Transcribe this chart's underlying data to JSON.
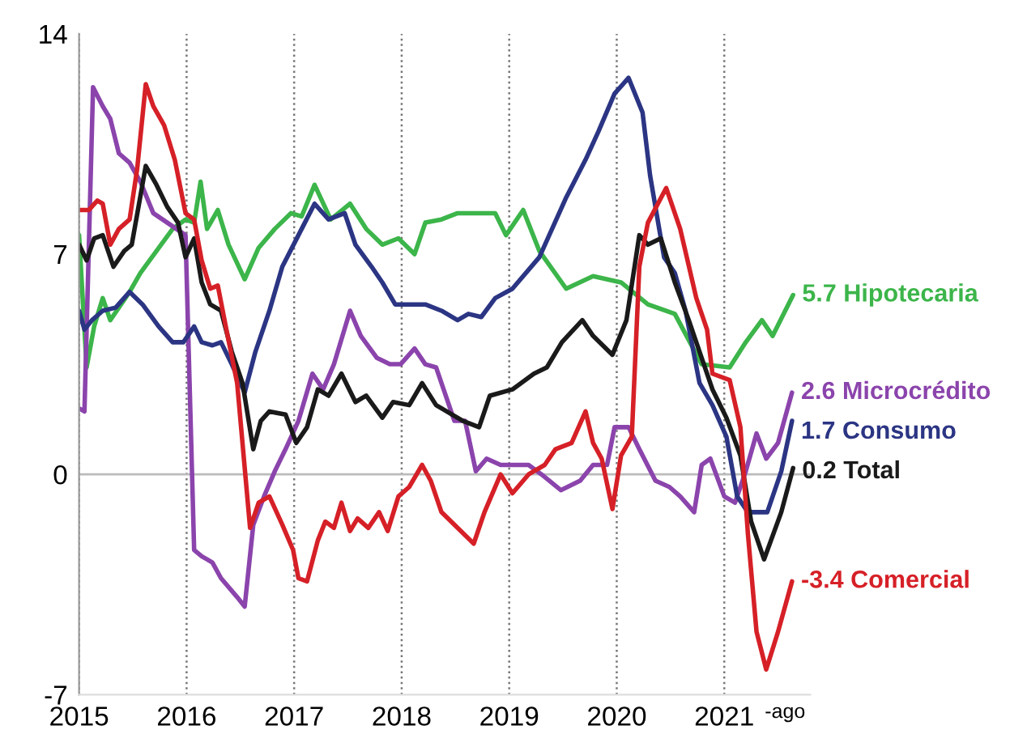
{
  "chart_data": {
    "type": "line",
    "xlim": [
      2015,
      2021.8
    ],
    "xticks": [
      2015,
      2016,
      2017,
      2018,
      2019,
      2020,
      2021
    ],
    "ylim": [
      -7,
      14
    ],
    "yticks": [
      -7,
      0,
      7,
      14
    ],
    "grid": "x",
    "marker": "none",
    "line_style": "solid",
    "ref_lines": [
      {
        "axis": "y",
        "value": 0,
        "color": "#bbbbbb"
      }
    ],
    "annotations": [
      "-ago"
    ],
    "series": [
      {
        "name": "5.7 Hipotecaria",
        "color": "#3cb54a",
        "x": [
          2015.0,
          2015.07,
          2015.14,
          2015.22,
          2015.29,
          2015.39,
          2015.47,
          2015.57,
          2015.72,
          2015.87,
          2015.99,
          2016.07,
          2016.13,
          2016.19,
          2016.29,
          2016.39,
          2016.54,
          2016.67,
          2016.82,
          2016.97,
          2017.07,
          2017.19,
          2017.34,
          2017.52,
          2017.67,
          2017.82,
          2017.97,
          2018.12,
          2018.22,
          2018.37,
          2018.52,
          2018.67,
          2018.87,
          2018.97,
          2019.13,
          2019.28,
          2019.53,
          2019.78,
          2020.04,
          2020.29,
          2020.54,
          2020.79,
          2021.05,
          2021.2,
          2021.35,
          2021.45,
          2021.64
        ],
        "values": [
          7.6,
          3.4,
          4.7,
          5.6,
          4.9,
          5.4,
          5.8,
          6.4,
          7.1,
          7.8,
          8.1,
          8.0,
          9.3,
          7.8,
          8.4,
          7.3,
          6.2,
          7.2,
          7.8,
          8.3,
          8.2,
          9.2,
          8.1,
          8.6,
          7.8,
          7.3,
          7.5,
          7.0,
          8.0,
          8.1,
          8.3,
          8.3,
          8.3,
          7.6,
          8.4,
          7.1,
          5.9,
          6.3,
          6.1,
          5.4,
          5.1,
          3.5,
          3.4,
          4.2,
          4.9,
          4.4,
          5.7
        ]
      },
      {
        "name": "2.6 Microcrédito",
        "color": "#8b44ac",
        "x": [
          2015.0,
          2015.05,
          2015.13,
          2015.22,
          2015.29,
          2015.37,
          2015.47,
          2015.57,
          2015.69,
          2015.82,
          2015.99,
          2016.07,
          2016.14,
          2016.24,
          2016.32,
          2016.47,
          2016.54,
          2016.62,
          2016.72,
          2016.82,
          2016.92,
          2017.04,
          2017.17,
          2017.27,
          2017.37,
          2017.52,
          2017.62,
          2017.77,
          2017.89,
          2017.99,
          2018.12,
          2018.22,
          2018.32,
          2018.39,
          2018.49,
          2018.59,
          2018.69,
          2018.79,
          2018.92,
          2019.03,
          2019.18,
          2019.3,
          2019.48,
          2019.66,
          2019.78,
          2019.91,
          2019.98,
          2020.11,
          2020.21,
          2020.36,
          2020.49,
          2020.59,
          2020.72,
          2020.79,
          2020.87,
          2021.0,
          2021.1,
          2021.2,
          2021.3,
          2021.39,
          2021.5,
          2021.63
        ],
        "values": [
          2.1,
          2.0,
          12.3,
          11.7,
          11.3,
          10.2,
          9.9,
          9.3,
          8.3,
          8.0,
          7.6,
          -2.4,
          -2.6,
          -2.8,
          -3.3,
          -3.9,
          -4.2,
          -1.6,
          -0.7,
          0.1,
          0.8,
          1.7,
          3.2,
          2.7,
          3.5,
          5.2,
          4.4,
          3.7,
          3.5,
          3.5,
          4.0,
          3.5,
          3.4,
          2.7,
          1.7,
          1.7,
          0.1,
          0.5,
          0.3,
          0.3,
          0.3,
          0.0,
          -0.5,
          -0.2,
          0.3,
          0.3,
          1.5,
          1.5,
          0.8,
          -0.2,
          -0.4,
          -0.7,
          -1.2,
          0.3,
          0.5,
          -0.7,
          -0.9,
          0.1,
          1.3,
          0.5,
          1.0,
          2.6
        ]
      },
      {
        "name": "1.7 Consumo",
        "color": "#2b3583",
        "x": [
          2015.0,
          2015.05,
          2015.12,
          2015.22,
          2015.34,
          2015.47,
          2015.59,
          2015.74,
          2015.87,
          2015.97,
          2016.07,
          2016.14,
          2016.24,
          2016.32,
          2016.42,
          2016.54,
          2016.64,
          2016.77,
          2016.89,
          2017.04,
          2017.19,
          2017.32,
          2017.47,
          2017.57,
          2017.72,
          2017.82,
          2017.94,
          2018.09,
          2018.22,
          2018.37,
          2018.52,
          2018.62,
          2018.74,
          2018.87,
          2019.03,
          2019.28,
          2019.53,
          2019.71,
          2019.83,
          2019.98,
          2020.11,
          2020.24,
          2020.31,
          2020.44,
          2020.54,
          2020.64,
          2020.77,
          2020.89,
          2021.02,
          2021.12,
          2021.22,
          2021.4,
          2021.53,
          2021.63
        ],
        "values": [
          5.2,
          4.6,
          4.9,
          5.2,
          5.3,
          5.8,
          5.4,
          4.7,
          4.2,
          4.2,
          4.7,
          4.2,
          4.1,
          4.2,
          3.5,
          2.6,
          3.9,
          5.2,
          6.6,
          7.6,
          8.6,
          8.1,
          8.3,
          7.3,
          6.6,
          6.1,
          5.4,
          5.4,
          5.4,
          5.2,
          4.9,
          5.1,
          5.0,
          5.6,
          5.9,
          6.9,
          8.8,
          10.0,
          10.9,
          12.1,
          12.6,
          11.5,
          9.5,
          6.9,
          6.4,
          5.2,
          2.9,
          2.2,
          1.2,
          -0.7,
          -1.2,
          -1.2,
          0.1,
          1.7
        ]
      },
      {
        "name": "0.2 Total",
        "color": "#1a1a1a",
        "x": [
          2015.0,
          2015.07,
          2015.14,
          2015.22,
          2015.32,
          2015.42,
          2015.49,
          2015.62,
          2015.72,
          2015.82,
          2015.92,
          2015.99,
          2016.07,
          2016.14,
          2016.22,
          2016.32,
          2016.42,
          2016.52,
          2016.62,
          2016.69,
          2016.77,
          2016.92,
          2017.02,
          2017.12,
          2017.22,
          2017.32,
          2017.44,
          2017.57,
          2017.67,
          2017.82,
          2017.92,
          2018.07,
          2018.19,
          2018.32,
          2018.47,
          2018.57,
          2018.72,
          2018.82,
          2019.03,
          2019.23,
          2019.35,
          2019.49,
          2019.68,
          2019.78,
          2019.96,
          2020.09,
          2020.21,
          2020.29,
          2020.41,
          2020.54,
          2020.67,
          2020.77,
          2020.89,
          2021.02,
          2021.15,
          2021.25,
          2021.37,
          2021.53,
          2021.64
        ],
        "values": [
          7.3,
          6.8,
          7.5,
          7.6,
          6.6,
          7.1,
          7.3,
          9.8,
          9.2,
          8.5,
          8.0,
          6.9,
          7.5,
          6.1,
          5.4,
          5.2,
          3.9,
          2.9,
          0.8,
          1.7,
          2.0,
          1.9,
          1.0,
          1.5,
          2.7,
          2.5,
          3.2,
          2.3,
          2.5,
          1.8,
          2.3,
          2.2,
          2.9,
          2.2,
          1.9,
          1.7,
          1.5,
          2.5,
          2.7,
          3.2,
          3.4,
          4.2,
          4.9,
          4.4,
          3.8,
          4.9,
          7.6,
          7.3,
          7.5,
          6.1,
          4.9,
          3.9,
          2.7,
          1.8,
          0.6,
          -1.5,
          -2.7,
          -1.2,
          0.2
        ]
      },
      {
        "name": "-3.4 Comercial",
        "color": "#d62027",
        "x": [
          2015.0,
          2015.09,
          2015.17,
          2015.22,
          2015.29,
          2015.37,
          2015.47,
          2015.54,
          2015.62,
          2015.69,
          2015.79,
          2015.89,
          2015.99,
          2016.07,
          2016.14,
          2016.22,
          2016.29,
          2016.37,
          2016.47,
          2016.59,
          2016.67,
          2016.77,
          2016.89,
          2016.99,
          2017.04,
          2017.12,
          2017.22,
          2017.29,
          2017.37,
          2017.44,
          2017.52,
          2017.59,
          2017.69,
          2017.79,
          2017.87,
          2017.97,
          2018.07,
          2018.19,
          2018.27,
          2018.37,
          2018.52,
          2018.67,
          2018.77,
          2018.92,
          2019.03,
          2019.18,
          2019.33,
          2019.43,
          2019.58,
          2019.71,
          2019.78,
          2019.86,
          2019.96,
          2020.04,
          2020.14,
          2020.21,
          2020.29,
          2020.46,
          2020.59,
          2020.74,
          2020.84,
          2020.89,
          2021.05,
          2021.15,
          2021.22,
          2021.3,
          2021.39,
          2021.5,
          2021.63
        ],
        "values": [
          8.4,
          8.4,
          8.7,
          8.6,
          7.3,
          7.8,
          8.1,
          9.7,
          12.4,
          11.7,
          11.1,
          10.0,
          8.3,
          8.1,
          6.8,
          5.9,
          6.0,
          4.6,
          2.9,
          -1.7,
          -0.9,
          -0.7,
          -1.6,
          -2.4,
          -3.3,
          -3.4,
          -2.1,
          -1.5,
          -1.7,
          -0.9,
          -1.8,
          -1.4,
          -1.7,
          -1.2,
          -1.8,
          -0.7,
          -0.4,
          0.3,
          -0.2,
          -1.2,
          -1.7,
          -2.2,
          -1.2,
          0.0,
          -0.6,
          0.0,
          0.3,
          0.8,
          1.0,
          2.0,
          1.0,
          0.5,
          -1.1,
          0.6,
          1.2,
          6.6,
          8.0,
          9.1,
          7.8,
          5.6,
          4.6,
          3.2,
          3.0,
          1.5,
          -1.9,
          -5.0,
          -6.2,
          -5.0,
          -3.4
        ]
      }
    ]
  }
}
